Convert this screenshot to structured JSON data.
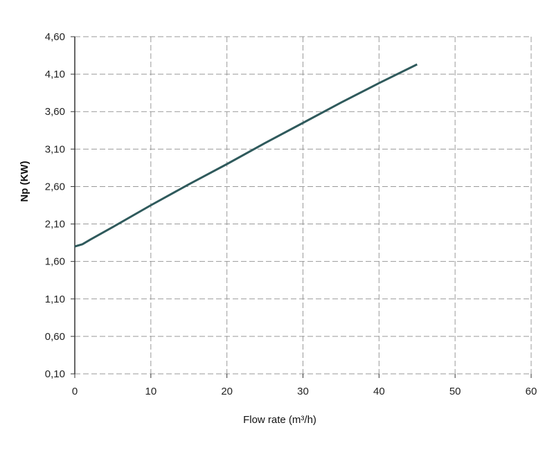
{
  "chart_data": {
    "type": "line",
    "title": "",
    "xlabel": "Flow rate (m³/h)",
    "ylabel": "Np (KW)",
    "xlim": [
      0,
      60
    ],
    "ylim": [
      0.1,
      4.6
    ],
    "xticks": [
      "0",
      "10",
      "20",
      "30",
      "40",
      "50",
      "60"
    ],
    "yticks": [
      "0,10",
      "0,60",
      "1,10",
      "1,60",
      "2,10",
      "2,60",
      "3,10",
      "3,60",
      "4,10",
      "4,60"
    ],
    "grid": true,
    "line_color": "#2f5a5c",
    "series": [
      {
        "x": [
          0,
          1,
          2,
          5,
          10,
          15,
          20,
          25,
          30,
          35,
          40,
          45
        ],
        "y": [
          1.8,
          1.83,
          1.89,
          2.06,
          2.35,
          2.63,
          2.9,
          3.18,
          3.45,
          3.72,
          3.98,
          4.23
        ]
      }
    ]
  }
}
